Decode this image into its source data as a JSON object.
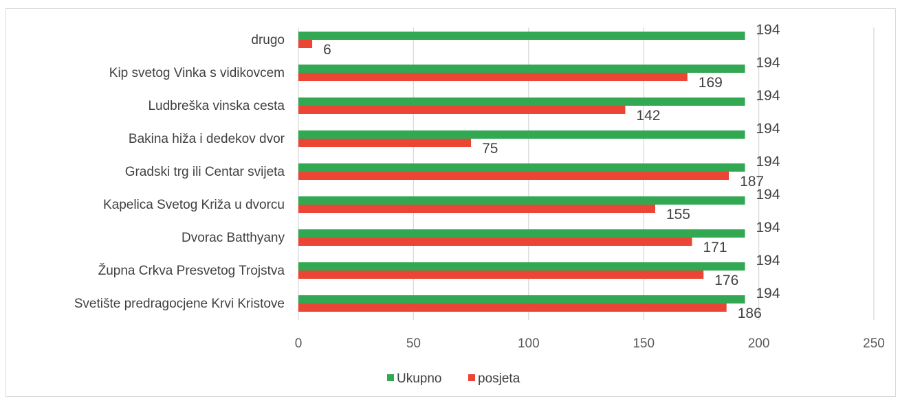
{
  "chart_data": {
    "type": "bar",
    "orientation": "horizontal",
    "categories": [
      "drugo",
      "Kip svetog Vinka s vidikovcem",
      "Ludbreška vinska cesta",
      "Bakina hiža i dedekov dvor",
      "Gradski trg ili Centar svijeta",
      "Kapelica Svetog Križa u dvorcu",
      "Dvorac Batthyany",
      "Župna Crkva Presvetog Trojstva",
      "Svetište predragocjene Krvi Kristove"
    ],
    "series": [
      {
        "name": "Ukupno",
        "color": "#32a852",
        "values": [
          194,
          194,
          194,
          194,
          194,
          194,
          194,
          194,
          194
        ]
      },
      {
        "name": "posjeta",
        "color": "#ea4535",
        "values": [
          6,
          169,
          142,
          75,
          187,
          155,
          171,
          176,
          186
        ]
      }
    ],
    "xlim": [
      0,
      250
    ],
    "xticks": [
      "0",
      "50",
      "100",
      "150",
      "200",
      "250"
    ],
    "grid": true,
    "data_labels": true,
    "legend_position": "bottom"
  }
}
